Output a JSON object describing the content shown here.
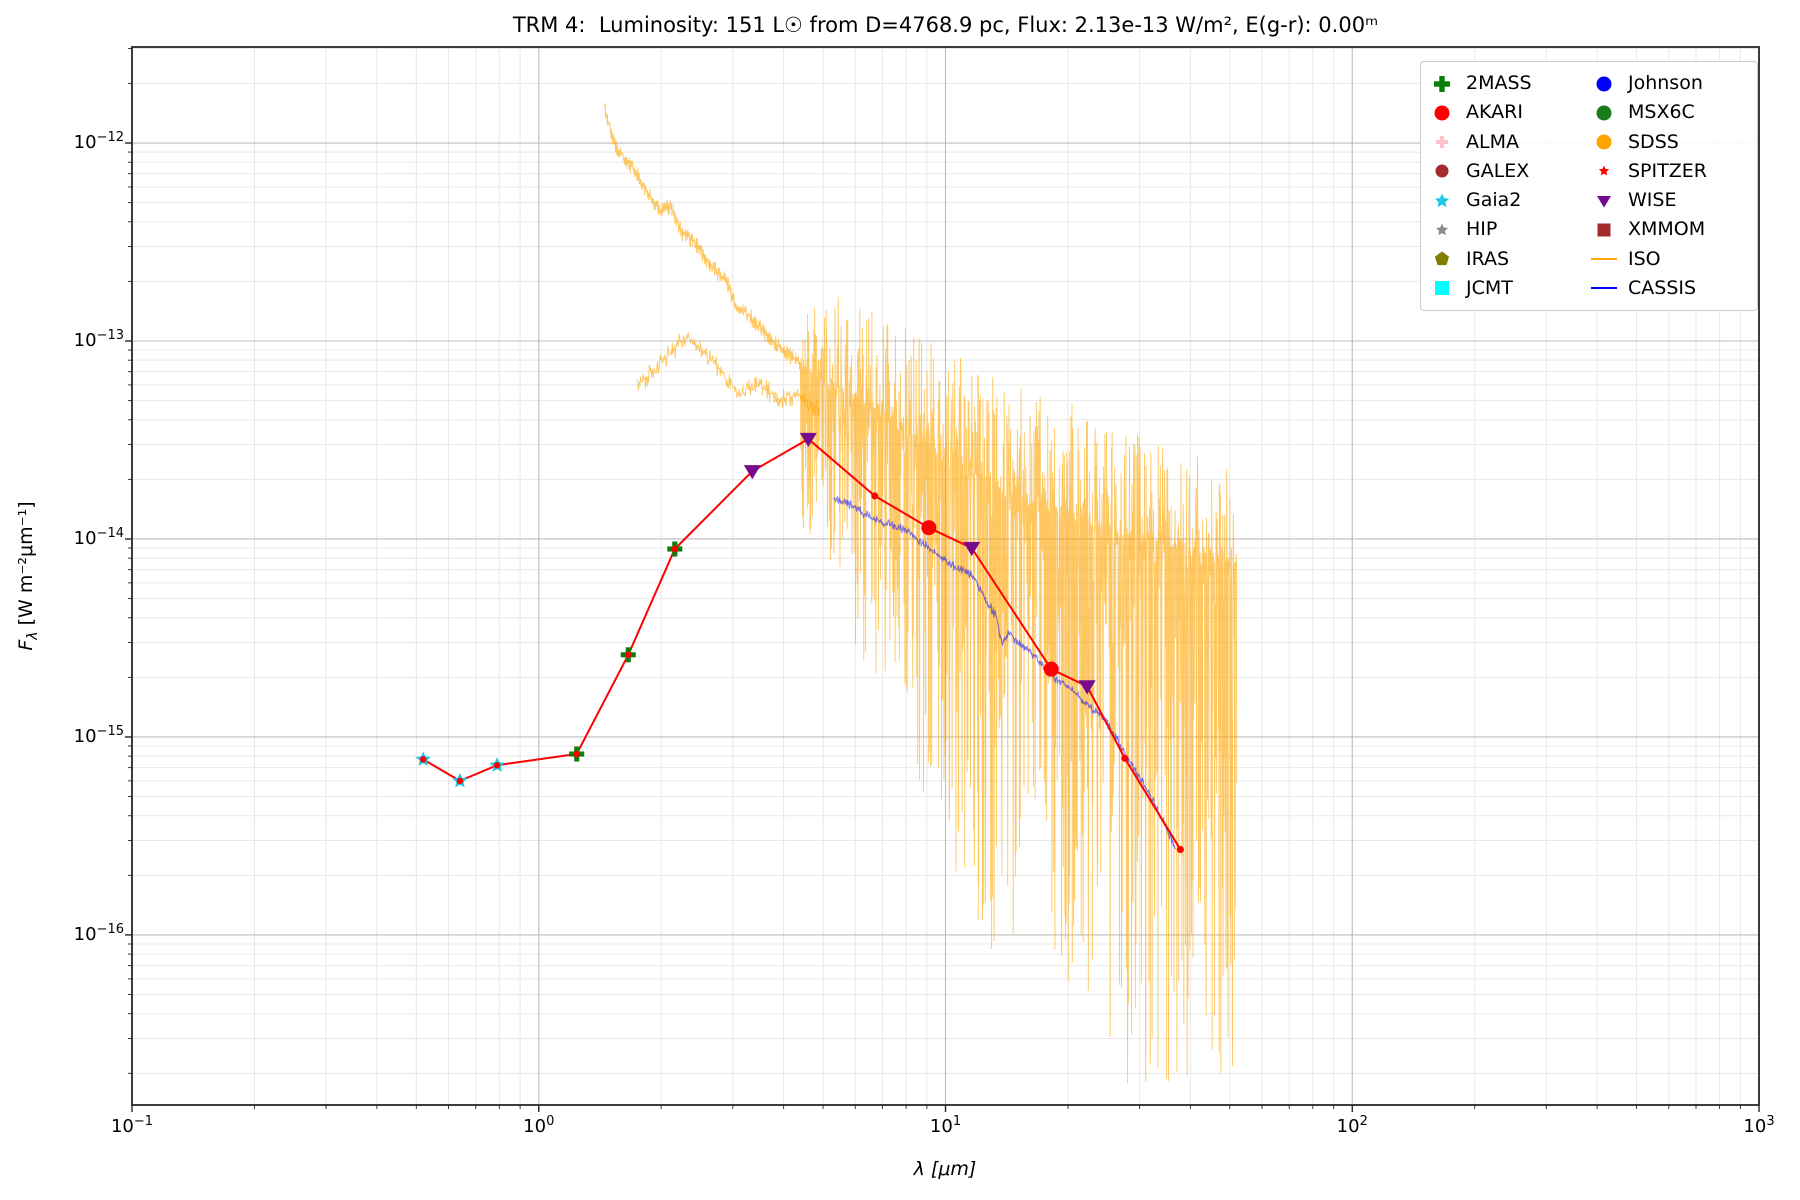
{
  "chart_data": {
    "type": "line",
    "title": "TRM 4:  Luminosity: 151 L☉ from D=4768.9 pc, Flux: 2.13e-13 W/m², E(g-r): 0.00ᵐ",
    "xlabel": "λ [μm]",
    "ylabel_symbol_main": "F",
    "ylabel_symbol_sub": "λ",
    "ylabel_units": " [W m⁻²μm⁻¹]",
    "xscale": "log",
    "yscale": "log",
    "x_log_range": [
      -1,
      3
    ],
    "y_log_range": [
      -16.859,
      -11.515
    ],
    "x_tick_exponents": [
      -1,
      0,
      1,
      2,
      3
    ],
    "y_tick_exponents": [
      -12,
      -13,
      -14,
      -15,
      -16
    ],
    "grid": {
      "major_color": "#bdbdbd",
      "minor_color": "#e8e8e8",
      "on": true
    },
    "sed_line": {
      "color": "#ff0000",
      "width": 2,
      "vertex_dot_size": 6.5,
      "points": [
        [
          0.52,
          7.7e-16
        ],
        [
          0.64,
          6e-16
        ],
        [
          0.79,
          7.2e-16
        ],
        [
          1.24,
          8.2e-16
        ],
        [
          1.66,
          2.6e-15
        ],
        [
          2.16,
          8.9e-15
        ],
        [
          3.35,
          2.2e-14
        ],
        [
          4.6,
          3.2e-14
        ],
        [
          6.7,
          1.65e-14
        ],
        [
          9.1,
          1.14e-14
        ],
        [
          11.6,
          9e-15
        ],
        [
          18.2,
          2.2e-15
        ],
        [
          22.3,
          1.8e-15
        ],
        [
          27.6,
          7.8e-16
        ],
        [
          37.8,
          2.7e-16
        ]
      ]
    },
    "photometry": [
      {
        "survey": "Gaia2",
        "marker": "star",
        "color": "#1dc8e8",
        "size": 16,
        "points": [
          [
            0.52,
            7.7e-16
          ],
          [
            0.64,
            6e-16
          ],
          [
            0.79,
            7.2e-16
          ]
        ]
      },
      {
        "survey": "2MASS",
        "marker": "plus",
        "color": "#0b7d0b",
        "size": 15,
        "points": [
          [
            1.24,
            8.2e-16
          ],
          [
            1.66,
            2.6e-15
          ],
          [
            2.16,
            8.9e-15
          ]
        ]
      },
      {
        "survey": "WISE",
        "marker": "triangle-down",
        "color": "#770b8e",
        "size": 17,
        "points": [
          [
            3.35,
            2.2e-14
          ],
          [
            4.6,
            3.2e-14
          ],
          [
            11.6,
            9e-15
          ],
          [
            22.3,
            1.8e-15
          ]
        ]
      },
      {
        "survey": "AKARI",
        "marker": "circle",
        "color": "#ff0000",
        "size": 15,
        "points": [
          [
            9.1,
            1.14e-14
          ],
          [
            18.2,
            2.2e-15
          ]
        ]
      },
      {
        "survey": "SPITZER",
        "marker": "dot",
        "color": "#ff0000",
        "size": 7,
        "points": [
          [
            6.7,
            1.65e-14
          ],
          [
            27.6,
            7.8e-16
          ],
          [
            37.8,
            2.7e-16
          ]
        ]
      }
    ],
    "spectra": [
      {
        "name": "ISO",
        "color": "#ffa500",
        "opacity": 0.62,
        "width": 0.9,
        "samples": 2400,
        "seed": 20,
        "anchors": [
          [
            1.45,
            1.55e-12
          ],
          [
            1.52,
            1.05e-12
          ],
          [
            1.62,
            8.5e-13
          ],
          [
            1.75,
            7e-13
          ],
          [
            1.85,
            5.6e-13
          ],
          [
            2.0,
            4.6e-13
          ],
          [
            2.1,
            4.9e-13
          ],
          [
            2.25,
            3.6e-13
          ],
          [
            2.45,
            3.1e-13
          ],
          [
            2.6,
            2.55e-13
          ],
          [
            2.75,
            2.25e-13
          ],
          [
            2.9,
            2e-13
          ],
          [
            3.05,
            1.5e-13
          ],
          [
            3.2,
            1.45e-13
          ],
          [
            3.45,
            1.2e-13
          ],
          [
            3.7,
            1.05e-13
          ],
          [
            4.0,
            9e-14
          ],
          [
            4.4,
            7.8e-14
          ],
          [
            5.0,
            6.2e-14
          ],
          [
            5.6,
            5.4e-14
          ],
          [
            6.4,
            4.8e-14
          ],
          [
            7.5,
            4e-14
          ],
          [
            9.0,
            3.1e-14
          ],
          [
            10.5,
            2.5e-14
          ],
          [
            12.5,
            2e-14
          ],
          [
            15.0,
            1.65e-14
          ],
          [
            18.0,
            1.4e-14
          ],
          [
            22.0,
            1.2e-14
          ],
          [
            27.0,
            1.05e-14
          ],
          [
            33.0,
            9.5e-15
          ],
          [
            40.0,
            8.5e-15
          ],
          [
            47.0,
            8e-15
          ],
          [
            52.0,
            7.5e-15
          ]
        ],
        "dip_zones": [
          [
            1.45,
            4.4,
            0.05
          ],
          [
            4.4,
            6.0,
            0.9
          ],
          [
            6.0,
            8.0,
            1.4
          ],
          [
            8.0,
            10.0,
            1.8
          ],
          [
            10.0,
            12.0,
            2.2
          ],
          [
            12.0,
            15.0,
            2.5
          ],
          [
            15.0,
            18.0,
            2.0
          ],
          [
            18.0,
            22.0,
            2.4
          ],
          [
            22.0,
            28.0,
            2.7
          ],
          [
            28.0,
            42.0,
            2.8
          ],
          [
            42.0,
            52.0,
            2.6
          ]
        ],
        "up_zones": [
          [
            1.45,
            4.4,
            0.04
          ],
          [
            4.4,
            8.0,
            0.5
          ],
          [
            8.0,
            15.0,
            0.55
          ],
          [
            15.0,
            22.0,
            0.6
          ],
          [
            22.0,
            30.0,
            0.55
          ],
          [
            30.0,
            52.0,
            0.5
          ]
        ]
      },
      {
        "name": "ISO-segment2",
        "color": "#ffa500",
        "opacity": 0.62,
        "width": 0.9,
        "samples": 300,
        "seed": 5,
        "anchors": [
          [
            1.75,
            6e-14
          ],
          [
            2.0,
            8e-14
          ],
          [
            2.3,
            1.05e-13
          ],
          [
            2.55,
            9e-14
          ],
          [
            2.8,
            7e-14
          ],
          [
            3.1,
            5.5e-14
          ],
          [
            3.5,
            6.2e-14
          ],
          [
            3.9,
            5e-14
          ],
          [
            4.4,
            5.5e-14
          ],
          [
            4.9,
            4.5e-14
          ]
        ],
        "dip_zones": [
          [
            1.7,
            5.0,
            0.06
          ]
        ],
        "up_zones": [
          [
            1.7,
            5.0,
            0.05
          ]
        ]
      },
      {
        "name": "CASSIS",
        "color": "#0000ff",
        "opacity": 0.5,
        "width": 1.1,
        "samples": 600,
        "seed": 3,
        "anchors": [
          [
            5.3,
            1.6e-14
          ],
          [
            5.8,
            1.5e-14
          ],
          [
            6.3,
            1.35e-14
          ],
          [
            7.0,
            1.22e-14
          ],
          [
            7.7,
            1.15e-14
          ],
          [
            8.3,
            1.05e-14
          ],
          [
            9.0,
            9.2e-15
          ],
          [
            9.7,
            8.2e-15
          ],
          [
            10.4,
            7.4e-15
          ],
          [
            11.0,
            7e-15
          ],
          [
            11.8,
            6.4e-15
          ],
          [
            12.5,
            5e-15
          ],
          [
            13.3,
            4.1e-15
          ],
          [
            13.8,
            2.9e-15
          ],
          [
            14.3,
            3.4e-15
          ],
          [
            15.2,
            3e-15
          ],
          [
            16.5,
            2.6e-15
          ],
          [
            18.0,
            2.1e-15
          ],
          [
            20.0,
            1.8e-15
          ],
          [
            22.0,
            1.5e-15
          ],
          [
            24.0,
            1.3e-15
          ],
          [
            26.0,
            1.05e-15
          ],
          [
            27.6,
            8.3e-16
          ],
          [
            29.0,
            7e-16
          ],
          [
            31.0,
            5.6e-16
          ],
          [
            33.0,
            4.4e-16
          ],
          [
            35.0,
            3.4e-16
          ],
          [
            36.8,
            2.8e-16
          ]
        ],
        "dip_zones": [
          [
            5.0,
            37.0,
            0.025
          ]
        ],
        "up_zones": [
          [
            5.0,
            37.0,
            0.025
          ]
        ]
      }
    ],
    "legend": {
      "entries": [
        {
          "label": "2MASS",
          "marker": "plus",
          "color": "#0b7d0b",
          "size": 16
        },
        {
          "label": "AKARI",
          "marker": "circle",
          "color": "#ff0000",
          "size": 15
        },
        {
          "label": "ALMA",
          "marker": "plus",
          "color": "#ffc0cb",
          "size": 12
        },
        {
          "label": "GALEX",
          "marker": "circle",
          "color": "#a52a2a",
          "size": 13
        },
        {
          "label": "Gaia2",
          "marker": "star",
          "color": "#1dc8e8",
          "size": 15
        },
        {
          "label": "HIP",
          "marker": "star",
          "color": "#8c8c8c",
          "size": 13
        },
        {
          "label": "IRAS",
          "marker": "pentagon",
          "color": "#808000",
          "size": 15
        },
        {
          "label": "JCMT",
          "marker": "square",
          "color": "#00ffff",
          "size": 14
        },
        {
          "label": "Johnson",
          "marker": "circle",
          "color": "#0000ff",
          "size": 15
        },
        {
          "label": "MSX6C",
          "marker": "circle",
          "color": "#1a7d1a",
          "size": 15
        },
        {
          "label": "SDSS",
          "marker": "circle",
          "color": "#ffa500",
          "size": 15
        },
        {
          "label": "SPITZER",
          "marker": "star",
          "color": "#ff0000",
          "size": 11
        },
        {
          "label": "WISE",
          "marker": "triangle-down",
          "color": "#770b8e",
          "size": 14
        },
        {
          "label": "XMMOM",
          "marker": "square",
          "color": "#a52a2a",
          "size": 13
        },
        {
          "label": "ISO",
          "marker": "line",
          "color": "#ffa500",
          "size": 26
        },
        {
          "label": "CASSIS",
          "marker": "line",
          "color": "#0000ff",
          "size": 26
        }
      ]
    }
  }
}
